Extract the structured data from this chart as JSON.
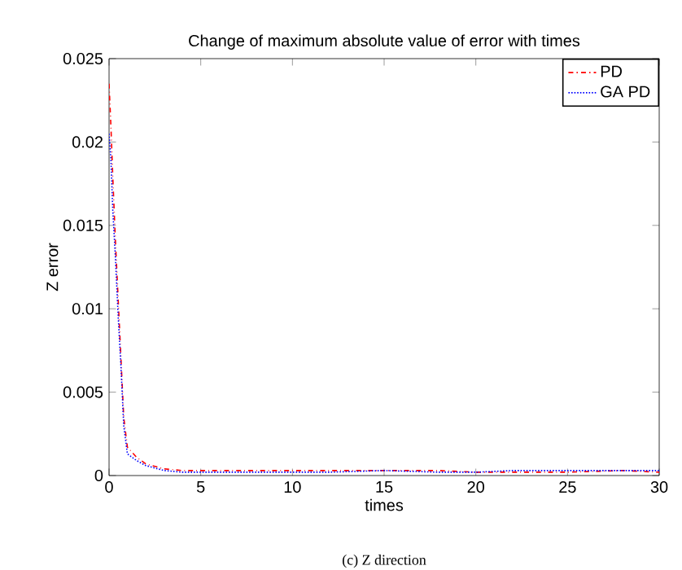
{
  "chart_data": {
    "type": "line",
    "title": "Change of maximum absolute value of error with times",
    "xlabel": "times",
    "ylabel": "Z error",
    "annotations": [
      "(c) Z direction"
    ],
    "xlim": [
      0,
      30
    ],
    "ylim": [
      0,
      0.025
    ],
    "xticks": [
      0,
      5,
      10,
      15,
      20,
      25,
      30
    ],
    "yticks": [
      0,
      0.005,
      0.01,
      0.015,
      0.02,
      0.025
    ],
    "legend": "top right",
    "grid": false,
    "series": [
      {
        "name": "PD",
        "color": "#ff0000",
        "line_style": "dashdot",
        "x": [
          0,
          0.1,
          0.2,
          0.35,
          0.5,
          0.65,
          0.8,
          1,
          1.5,
          2,
          3,
          4,
          5,
          7,
          10,
          12,
          15,
          18,
          20,
          22,
          25,
          28,
          30
        ],
        "values": [
          0.0235,
          0.021,
          0.018,
          0.014,
          0.0105,
          0.007,
          0.0035,
          0.0017,
          0.0011,
          0.0007,
          0.0004,
          0.0003,
          0.0003,
          0.0003,
          0.0003,
          0.0003,
          0.0003,
          0.0003,
          0.0002,
          0.0002,
          0.0002,
          0.0003,
          0.0002
        ]
      },
      {
        "name": "GA PD",
        "color": "#0000ff",
        "line_style": "dotted",
        "x": [
          0,
          0.1,
          0.2,
          0.35,
          0.5,
          0.65,
          0.8,
          1,
          1.5,
          2,
          3,
          4,
          5,
          7,
          10,
          12,
          15,
          18,
          20,
          22,
          25,
          28,
          30
        ],
        "values": [
          0.0205,
          0.019,
          0.016,
          0.013,
          0.0095,
          0.0065,
          0.003,
          0.0013,
          0.0009,
          0.0006,
          0.0003,
          0.0002,
          0.0002,
          0.0002,
          0.0002,
          0.0002,
          0.0003,
          0.0002,
          0.0002,
          0.0003,
          0.0003,
          0.0003,
          0.0003
        ]
      }
    ]
  }
}
